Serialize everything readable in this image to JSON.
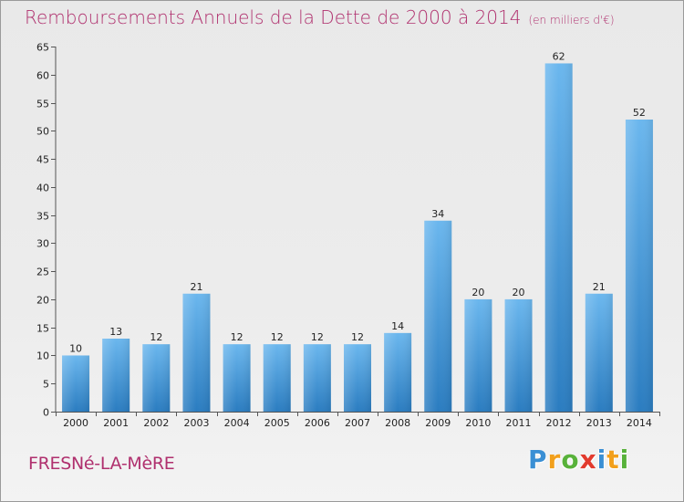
{
  "chart_data": {
    "type": "bar",
    "title": "Remboursements Annuels de la Dette de 2000 à 2014",
    "subtitle": "(en milliers d'€)",
    "categories": [
      "2000",
      "2001",
      "2002",
      "2003",
      "2004",
      "2005",
      "2006",
      "2007",
      "2008",
      "2009",
      "2010",
      "2011",
      "2012",
      "2013",
      "2014"
    ],
    "values": [
      10,
      13,
      12,
      21,
      12,
      12,
      12,
      12,
      14,
      34,
      20,
      20,
      62,
      21,
      52
    ],
    "ylim": [
      0,
      65
    ],
    "yticks": [
      0,
      5,
      10,
      15,
      20,
      25,
      30,
      35,
      40,
      45,
      50,
      55,
      60,
      65
    ],
    "xlabel": "",
    "ylabel": "",
    "grid": false,
    "bar_color_top": "#6bb7ee",
    "bar_color_bottom": "#2a7cc0"
  },
  "footer": {
    "commune": "FRESNé-LA-MèRE",
    "brand_letters": [
      {
        "char": "P",
        "color": "#3a8fd4"
      },
      {
        "char": "r",
        "color": "#f2a01c"
      },
      {
        "char": "o",
        "color": "#58b23a"
      },
      {
        "char": "x",
        "color": "#e23b2e"
      },
      {
        "char": "i",
        "color": "#3a8fd4"
      },
      {
        "char": "t",
        "color": "#f2a01c"
      },
      {
        "char": "i",
        "color": "#58b23a"
      }
    ]
  }
}
